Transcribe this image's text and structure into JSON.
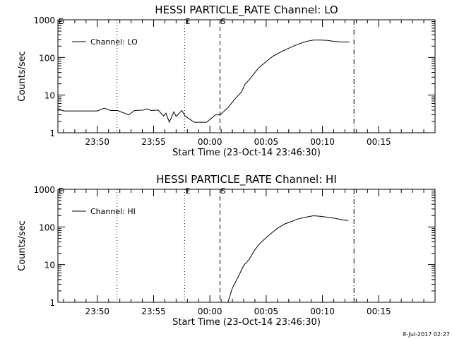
{
  "footer": {
    "timestamp": "8-Jul-2017 02:27"
  },
  "chart_data": [
    {
      "type": "line",
      "title": "HESSI PARTICLE_RATE Channel: LO",
      "xlabel": "Start Time (23-Oct-14 23:46:30)",
      "ylabel": "Counts/sec",
      "yscale": "log",
      "ylim": [
        1,
        1000
      ],
      "y_ticks": [
        1,
        10,
        100,
        1000
      ],
      "y_tick_labels": [
        "1",
        "10",
        "100",
        "1000"
      ],
      "xlim": [
        "23:46:30",
        "00:20:00"
      ],
      "x_ticks": [
        "23:50",
        "23:55",
        "00:00",
        "00:05",
        "00:10",
        "00:15"
      ],
      "legend": {
        "entries": [
          "Channel: LO"
        ],
        "placement": "top-left"
      },
      "markers": [
        {
          "label": "E",
          "time": "23:46:30",
          "style": "dotted"
        },
        {
          "label": "",
          "time": "23:51:45",
          "style": "dotted"
        },
        {
          "label": "E",
          "time": "23:57:45",
          "style": "dotted"
        },
        {
          "label": "S",
          "time": "00:00:54",
          "style": "dashed"
        },
        {
          "label": "",
          "time": "00:12:48",
          "style": "dashdot"
        }
      ],
      "series": [
        {
          "name": "Channel: LO",
          "x": [
            "23:46:30",
            "23:47:00",
            "23:48:00",
            "23:49:00",
            "23:50:00",
            "23:50:36",
            "23:51:12",
            "23:51:48",
            "23:52:48",
            "23:53:18",
            "23:54:06",
            "23:54:24",
            "23:54:48",
            "23:55:24",
            "23:55:54",
            "23:56:06",
            "23:56:24",
            "23:56:48",
            "23:57:00",
            "23:57:30",
            "23:57:48",
            "23:58:36",
            "23:59:42",
            "00:00:30",
            "00:00:54",
            "00:01:36",
            "00:02:12",
            "00:02:48",
            "00:03:06",
            "00:03:36",
            "00:04:00",
            "00:04:24",
            "00:05:00",
            "00:05:36",
            "00:06:30",
            "00:07:30",
            "00:08:30",
            "00:09:12",
            "00:09:48",
            "00:10:24",
            "00:11:00",
            "00:11:36",
            "00:12:24"
          ],
          "values": [
            4.4,
            3.8,
            3.8,
            3.8,
            3.8,
            4.5,
            3.9,
            3.9,
            3.0,
            3.9,
            4.0,
            4.3,
            3.9,
            4.0,
            2.8,
            3.3,
            1.9,
            3.6,
            2.7,
            3.9,
            2.8,
            1.9,
            1.9,
            3.0,
            3.0,
            4.6,
            7.8,
            12,
            19,
            28,
            40,
            55,
            78,
            108,
            150,
            205,
            265,
            288,
            290,
            285,
            268,
            258,
            258
          ]
        }
      ]
    },
    {
      "type": "line",
      "title": "HESSI PARTICLE_RATE Channel: HI",
      "xlabel": "Start Time (23-Oct-14 23:46:30)",
      "ylabel": "Counts/sec",
      "yscale": "log",
      "ylim": [
        1,
        1000
      ],
      "y_ticks": [
        1,
        10,
        100,
        1000
      ],
      "y_tick_labels": [
        "1",
        "10",
        "100",
        "1000"
      ],
      "xlim": [
        "23:46:30",
        "00:20:00"
      ],
      "x_ticks": [
        "23:50",
        "23:55",
        "00:00",
        "00:05",
        "00:10",
        "00:15"
      ],
      "legend": {
        "entries": [
          "Channel: HI"
        ],
        "placement": "top-left"
      },
      "markers": [
        {
          "label": "E",
          "time": "23:46:30",
          "style": "dotted"
        },
        {
          "label": "",
          "time": "23:51:45",
          "style": "dotted"
        },
        {
          "label": "E",
          "time": "23:57:45",
          "style": "dotted"
        },
        {
          "label": "S",
          "time": "00:00:54",
          "style": "dashed"
        },
        {
          "label": "",
          "time": "00:12:48",
          "style": "dashdot"
        }
      ],
      "series": [
        {
          "name": "Channel: HI",
          "x": [
            "00:01:36",
            "00:02:00",
            "00:02:30",
            "00:03:00",
            "00:03:30",
            "00:04:00",
            "00:04:30",
            "00:05:00",
            "00:05:30",
            "00:06:00",
            "00:06:36",
            "00:07:12",
            "00:07:48",
            "00:08:30",
            "00:09:12",
            "00:09:48",
            "00:10:24",
            "00:11:00",
            "00:11:36",
            "00:12:18"
          ],
          "values": [
            1.0,
            2.4,
            4.6,
            9.5,
            14,
            25,
            38,
            52,
            70,
            92,
            118,
            138,
            162,
            182,
            198,
            192,
            182,
            172,
            158,
            148
          ]
        }
      ]
    }
  ]
}
